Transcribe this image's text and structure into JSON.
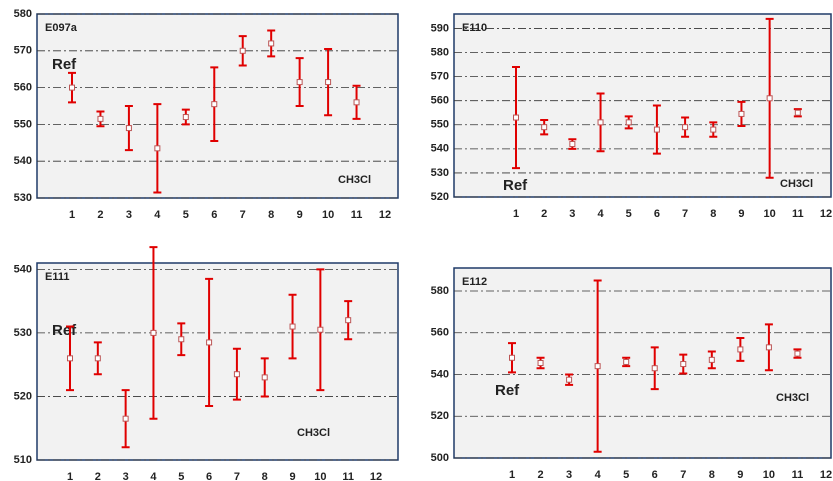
{
  "chart_data": [
    {
      "type": "errorbar",
      "title": "E097a",
      "ref_label": "Ref",
      "compound_label": "CH3Cl",
      "categories": [
        "1",
        "2",
        "3",
        "4",
        "5",
        "6",
        "7",
        "8",
        "9",
        "10",
        "11",
        "12"
      ],
      "values": [
        560,
        551.5,
        549,
        543.5,
        552,
        555.5,
        570,
        572,
        561.5,
        561.5,
        556,
        null
      ],
      "errors": [
        4,
        2,
        6,
        12,
        2,
        10,
        4,
        3.5,
        6.5,
        9,
        4.5,
        null
      ],
      "ylim": [
        530,
        580
      ],
      "yticks": [
        530,
        540,
        550,
        560,
        570,
        580
      ],
      "grid": true,
      "color": "#e00000"
    },
    {
      "type": "errorbar",
      "title": "E110",
      "ref_label": "Ref",
      "compound_label": "CH3Cl",
      "categories": [
        "1",
        "2",
        "3",
        "4",
        "5",
        "6",
        "7",
        "8",
        "9",
        "10",
        "11",
        "12"
      ],
      "values": [
        553,
        549,
        542,
        551,
        551,
        548,
        549,
        548,
        554.5,
        561,
        555,
        null
      ],
      "errors": [
        21,
        3,
        2,
        12,
        2.5,
        10,
        4,
        3,
        5,
        33,
        1.5,
        null
      ],
      "ylim": [
        520,
        596
      ],
      "yticks": [
        520,
        530,
        540,
        550,
        560,
        570,
        580,
        590
      ],
      "grid": true,
      "color": "#e00000"
    },
    {
      "type": "errorbar",
      "title": "E111",
      "ref_label": "Ref",
      "compound_label": "CH3Cl",
      "categories": [
        "1",
        "2",
        "3",
        "4",
        "5",
        "6",
        "7",
        "8",
        "9",
        "10",
        "11",
        "12"
      ],
      "values": [
        526,
        526,
        516.5,
        530,
        529,
        528.5,
        523.5,
        523,
        531,
        530.5,
        532,
        null
      ],
      "errors": [
        5,
        2.5,
        4.5,
        13.5,
        2.5,
        10,
        4,
        3,
        5,
        9.5,
        3,
        null
      ],
      "ylim": [
        510,
        541
      ],
      "yticks": [
        510,
        520,
        530,
        540
      ],
      "grid": true,
      "color": "#e00000"
    },
    {
      "type": "errorbar",
      "title": "E112",
      "ref_label": "Ref",
      "compound_label": "CH3Cl",
      "categories": [
        "1",
        "2",
        "3",
        "4",
        "5",
        "6",
        "7",
        "8",
        "9",
        "10",
        "11",
        "12"
      ],
      "values": [
        548,
        545.5,
        537.5,
        544,
        546,
        543,
        545,
        547,
        552,
        553,
        550,
        null
      ],
      "errors": [
        7,
        2.5,
        2.5,
        41,
        2,
        10,
        4.5,
        4,
        5.5,
        11,
        2,
        null
      ],
      "ylim": [
        500,
        591
      ],
      "yticks": [
        500,
        520,
        540,
        560,
        580
      ],
      "grid": true,
      "color": "#e00000"
    }
  ]
}
